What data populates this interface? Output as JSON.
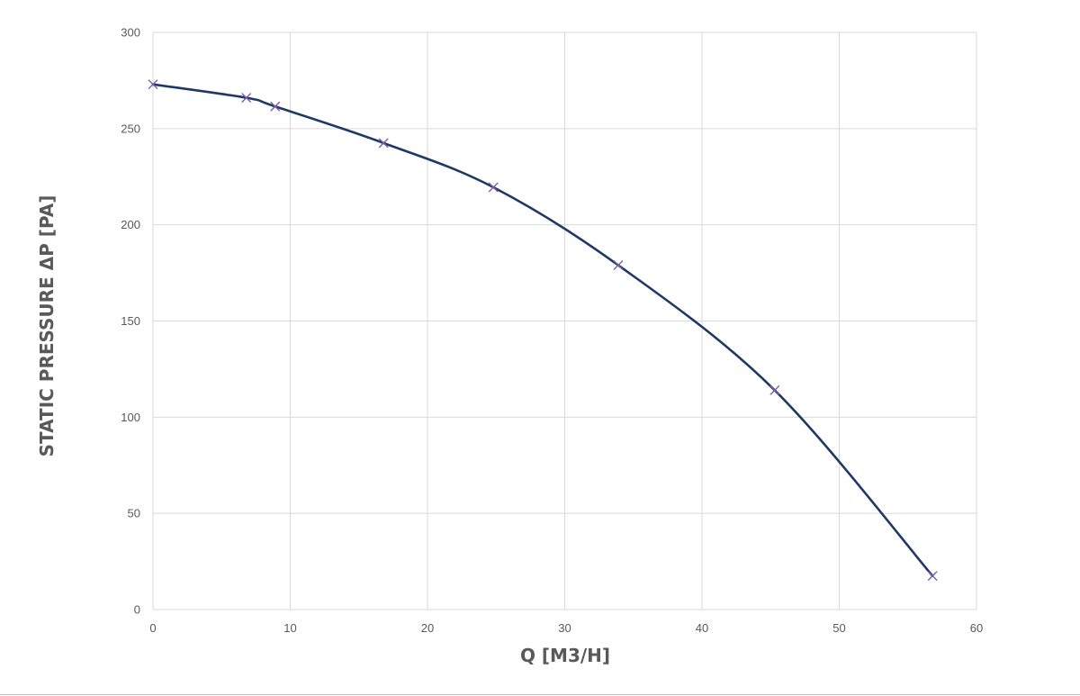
{
  "chart_data": {
    "type": "line",
    "title": "",
    "xlabel": "Q [M3/H]",
    "ylabel": "STATIC PRESSURE ΔP [PA]",
    "xlim": [
      0,
      60
    ],
    "ylim": [
      0,
      300
    ],
    "x_ticks": [
      "0",
      "10",
      "20",
      "30",
      "40",
      "50",
      "60"
    ],
    "y_ticks": [
      "0",
      "50",
      "100",
      "150",
      "200",
      "250",
      "300"
    ],
    "grid": true,
    "legend": "none",
    "series": [
      {
        "x": [
          0,
          6.8,
          8.9,
          16.8,
          24.8,
          33.9,
          45.3,
          56.8
        ],
        "y": [
          273,
          266,
          261.5,
          242.5,
          219.5,
          179,
          114,
          17.5
        ]
      }
    ],
    "colors": {
      "line": "#1f3864",
      "marker": "#7e5fa6",
      "grid": "#d9d9d9",
      "text": "#595959"
    }
  }
}
